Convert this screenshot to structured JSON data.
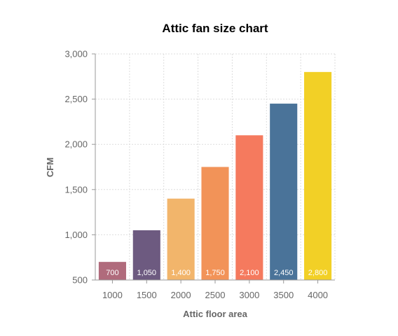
{
  "chart_data": {
    "type": "bar",
    "title": "Attic fan size chart",
    "xlabel": "Attic floor area",
    "ylabel": "CFM",
    "categories": [
      "1000",
      "1500",
      "2000",
      "2500",
      "3000",
      "3500",
      "4000"
    ],
    "values": [
      700,
      1050,
      1400,
      1750,
      2100,
      2450,
      2800
    ],
    "value_labels": [
      "700",
      "1,050",
      "1,400",
      "1,750",
      "2,100",
      "2,450",
      "2,800"
    ],
    "ylim": [
      500,
      3000
    ],
    "yticks": [
      500,
      1000,
      1500,
      2000,
      2500,
      3000
    ],
    "ytick_labels": [
      "500",
      "1,000",
      "1,500",
      "2,000",
      "2,500",
      "3,000"
    ],
    "grid": true,
    "legend": "none",
    "colors": [
      "#b06b7c",
      "#6d5a80",
      "#f2b56b",
      "#f29358",
      "#f57a5e",
      "#4a7399",
      "#f2d026"
    ]
  }
}
